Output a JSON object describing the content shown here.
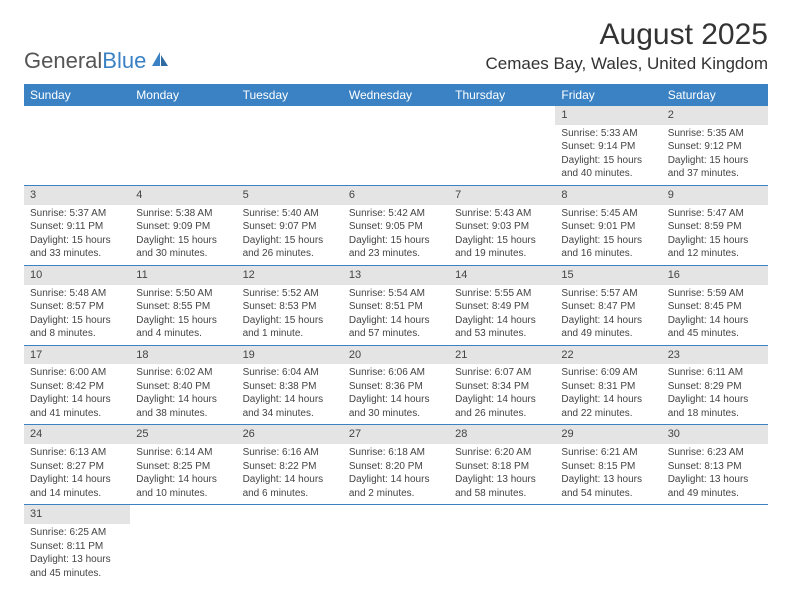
{
  "logo": {
    "text1": "General",
    "text2": "Blue"
  },
  "title": "August 2025",
  "location": "Cemaes Bay, Wales, United Kingdom",
  "colors": {
    "header_bg": "#3b82c4",
    "header_fg": "#ffffff",
    "daynum_bg": "#e4e4e4",
    "border": "#3b82c4",
    "text": "#444444"
  },
  "weekdays": [
    "Sunday",
    "Monday",
    "Tuesday",
    "Wednesday",
    "Thursday",
    "Friday",
    "Saturday"
  ],
  "weeks": [
    [
      null,
      null,
      null,
      null,
      null,
      {
        "n": "1",
        "sr": "Sunrise: 5:33 AM",
        "ss": "Sunset: 9:14 PM",
        "d1": "Daylight: 15 hours",
        "d2": "and 40 minutes."
      },
      {
        "n": "2",
        "sr": "Sunrise: 5:35 AM",
        "ss": "Sunset: 9:12 PM",
        "d1": "Daylight: 15 hours",
        "d2": "and 37 minutes."
      }
    ],
    [
      {
        "n": "3",
        "sr": "Sunrise: 5:37 AM",
        "ss": "Sunset: 9:11 PM",
        "d1": "Daylight: 15 hours",
        "d2": "and 33 minutes."
      },
      {
        "n": "4",
        "sr": "Sunrise: 5:38 AM",
        "ss": "Sunset: 9:09 PM",
        "d1": "Daylight: 15 hours",
        "d2": "and 30 minutes."
      },
      {
        "n": "5",
        "sr": "Sunrise: 5:40 AM",
        "ss": "Sunset: 9:07 PM",
        "d1": "Daylight: 15 hours",
        "d2": "and 26 minutes."
      },
      {
        "n": "6",
        "sr": "Sunrise: 5:42 AM",
        "ss": "Sunset: 9:05 PM",
        "d1": "Daylight: 15 hours",
        "d2": "and 23 minutes."
      },
      {
        "n": "7",
        "sr": "Sunrise: 5:43 AM",
        "ss": "Sunset: 9:03 PM",
        "d1": "Daylight: 15 hours",
        "d2": "and 19 minutes."
      },
      {
        "n": "8",
        "sr": "Sunrise: 5:45 AM",
        "ss": "Sunset: 9:01 PM",
        "d1": "Daylight: 15 hours",
        "d2": "and 16 minutes."
      },
      {
        "n": "9",
        "sr": "Sunrise: 5:47 AM",
        "ss": "Sunset: 8:59 PM",
        "d1": "Daylight: 15 hours",
        "d2": "and 12 minutes."
      }
    ],
    [
      {
        "n": "10",
        "sr": "Sunrise: 5:48 AM",
        "ss": "Sunset: 8:57 PM",
        "d1": "Daylight: 15 hours",
        "d2": "and 8 minutes."
      },
      {
        "n": "11",
        "sr": "Sunrise: 5:50 AM",
        "ss": "Sunset: 8:55 PM",
        "d1": "Daylight: 15 hours",
        "d2": "and 4 minutes."
      },
      {
        "n": "12",
        "sr": "Sunrise: 5:52 AM",
        "ss": "Sunset: 8:53 PM",
        "d1": "Daylight: 15 hours",
        "d2": "and 1 minute."
      },
      {
        "n": "13",
        "sr": "Sunrise: 5:54 AM",
        "ss": "Sunset: 8:51 PM",
        "d1": "Daylight: 14 hours",
        "d2": "and 57 minutes."
      },
      {
        "n": "14",
        "sr": "Sunrise: 5:55 AM",
        "ss": "Sunset: 8:49 PM",
        "d1": "Daylight: 14 hours",
        "d2": "and 53 minutes."
      },
      {
        "n": "15",
        "sr": "Sunrise: 5:57 AM",
        "ss": "Sunset: 8:47 PM",
        "d1": "Daylight: 14 hours",
        "d2": "and 49 minutes."
      },
      {
        "n": "16",
        "sr": "Sunrise: 5:59 AM",
        "ss": "Sunset: 8:45 PM",
        "d1": "Daylight: 14 hours",
        "d2": "and 45 minutes."
      }
    ],
    [
      {
        "n": "17",
        "sr": "Sunrise: 6:00 AM",
        "ss": "Sunset: 8:42 PM",
        "d1": "Daylight: 14 hours",
        "d2": "and 41 minutes."
      },
      {
        "n": "18",
        "sr": "Sunrise: 6:02 AM",
        "ss": "Sunset: 8:40 PM",
        "d1": "Daylight: 14 hours",
        "d2": "and 38 minutes."
      },
      {
        "n": "19",
        "sr": "Sunrise: 6:04 AM",
        "ss": "Sunset: 8:38 PM",
        "d1": "Daylight: 14 hours",
        "d2": "and 34 minutes."
      },
      {
        "n": "20",
        "sr": "Sunrise: 6:06 AM",
        "ss": "Sunset: 8:36 PM",
        "d1": "Daylight: 14 hours",
        "d2": "and 30 minutes."
      },
      {
        "n": "21",
        "sr": "Sunrise: 6:07 AM",
        "ss": "Sunset: 8:34 PM",
        "d1": "Daylight: 14 hours",
        "d2": "and 26 minutes."
      },
      {
        "n": "22",
        "sr": "Sunrise: 6:09 AM",
        "ss": "Sunset: 8:31 PM",
        "d1": "Daylight: 14 hours",
        "d2": "and 22 minutes."
      },
      {
        "n": "23",
        "sr": "Sunrise: 6:11 AM",
        "ss": "Sunset: 8:29 PM",
        "d1": "Daylight: 14 hours",
        "d2": "and 18 minutes."
      }
    ],
    [
      {
        "n": "24",
        "sr": "Sunrise: 6:13 AM",
        "ss": "Sunset: 8:27 PM",
        "d1": "Daylight: 14 hours",
        "d2": "and 14 minutes."
      },
      {
        "n": "25",
        "sr": "Sunrise: 6:14 AM",
        "ss": "Sunset: 8:25 PM",
        "d1": "Daylight: 14 hours",
        "d2": "and 10 minutes."
      },
      {
        "n": "26",
        "sr": "Sunrise: 6:16 AM",
        "ss": "Sunset: 8:22 PM",
        "d1": "Daylight: 14 hours",
        "d2": "and 6 minutes."
      },
      {
        "n": "27",
        "sr": "Sunrise: 6:18 AM",
        "ss": "Sunset: 8:20 PM",
        "d1": "Daylight: 14 hours",
        "d2": "and 2 minutes."
      },
      {
        "n": "28",
        "sr": "Sunrise: 6:20 AM",
        "ss": "Sunset: 8:18 PM",
        "d1": "Daylight: 13 hours",
        "d2": "and 58 minutes."
      },
      {
        "n": "29",
        "sr": "Sunrise: 6:21 AM",
        "ss": "Sunset: 8:15 PM",
        "d1": "Daylight: 13 hours",
        "d2": "and 54 minutes."
      },
      {
        "n": "30",
        "sr": "Sunrise: 6:23 AM",
        "ss": "Sunset: 8:13 PM",
        "d1": "Daylight: 13 hours",
        "d2": "and 49 minutes."
      }
    ],
    [
      {
        "n": "31",
        "sr": "Sunrise: 6:25 AM",
        "ss": "Sunset: 8:11 PM",
        "d1": "Daylight: 13 hours",
        "d2": "and 45 minutes."
      },
      null,
      null,
      null,
      null,
      null,
      null
    ]
  ]
}
